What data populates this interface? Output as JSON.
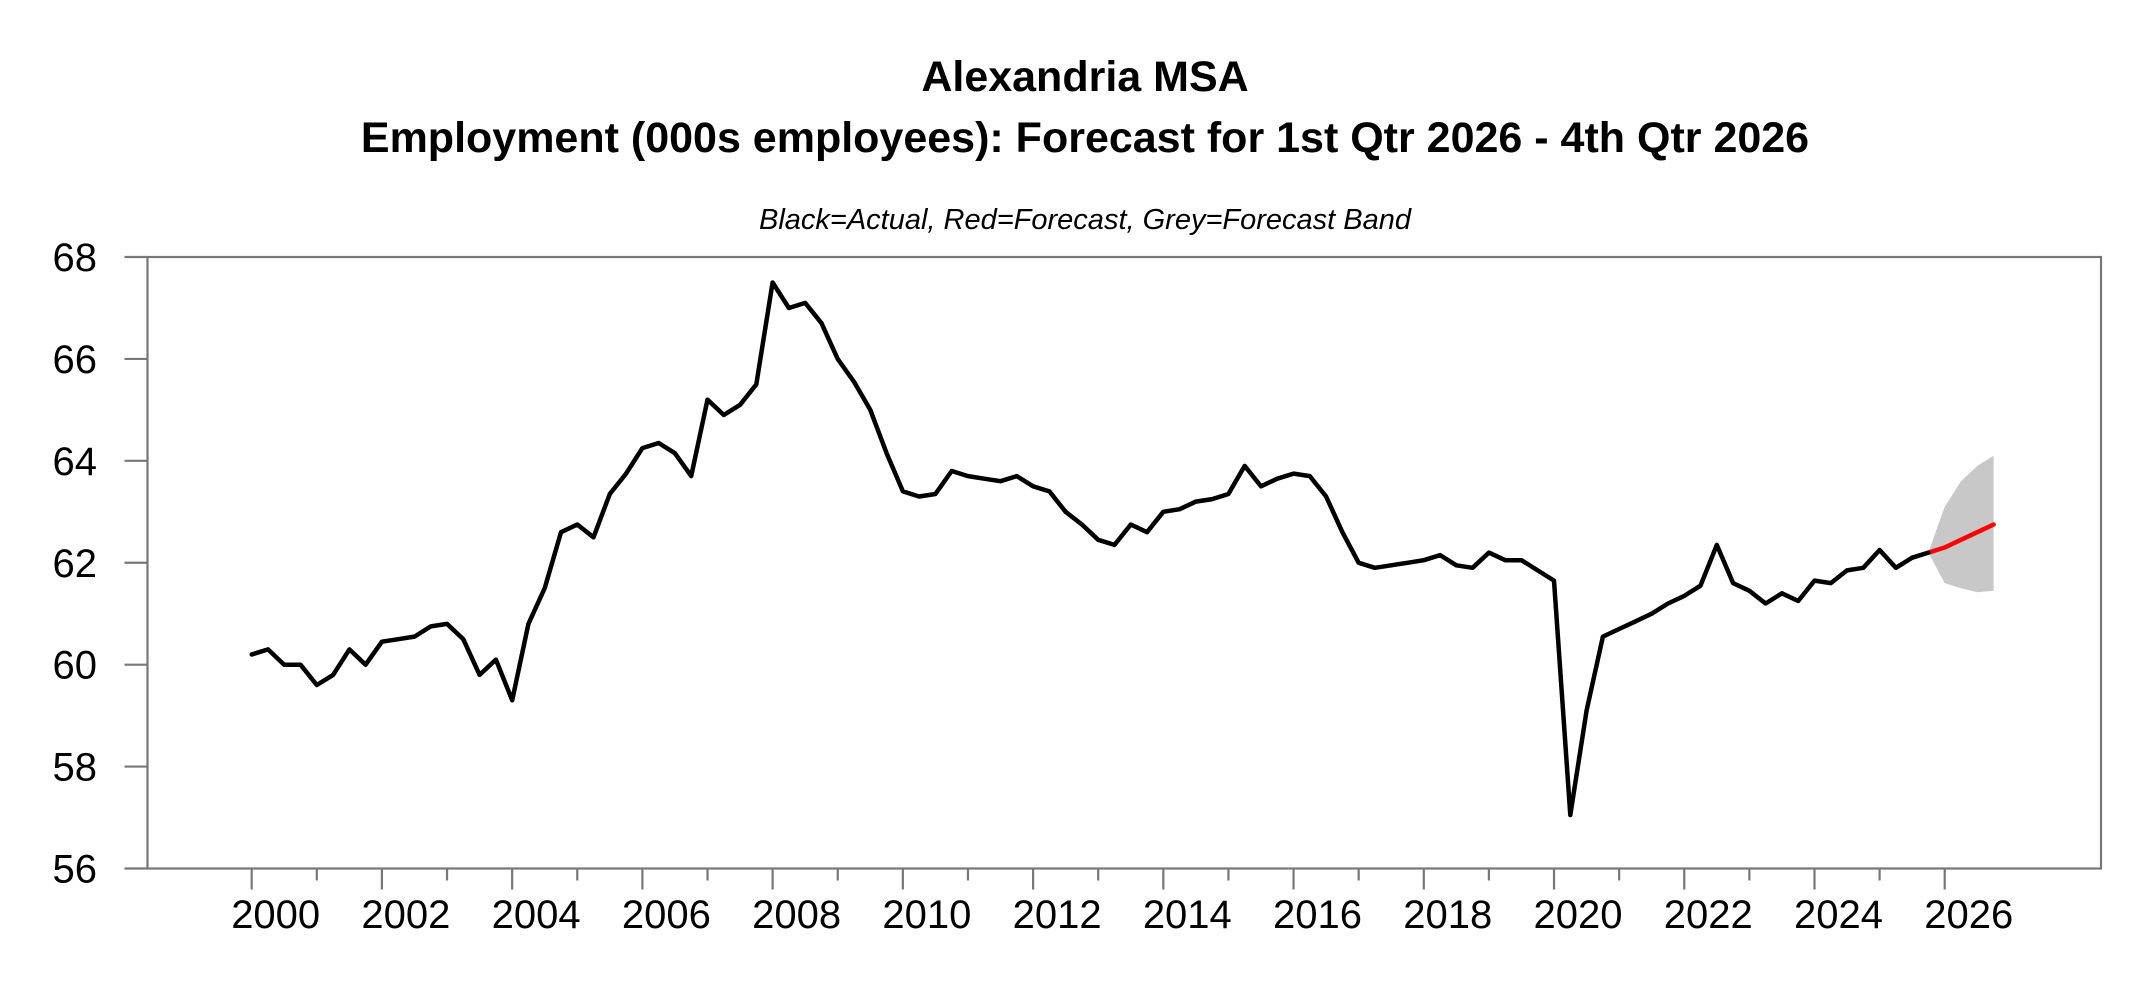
{
  "header": {
    "title_line1": "Alexandria MSA",
    "title_line2": "Employment (000s employees): Forecast for 1st Qtr 2026 - 4th Qtr 2026",
    "subtitle": "Black=Actual, Red=Forecast, Grey=Forecast Band"
  },
  "colors": {
    "actual_line": "#000000",
    "forecast_line": "#ff0000",
    "forecast_band": "#c8c8c8",
    "axis": "#777777",
    "tick_label": "#000000",
    "background": "#ffffff"
  },
  "chart_data": {
    "type": "line",
    "title": "Alexandria MSA",
    "subtitle": "Employment (000s employees): Forecast for 1st Qtr 2026 - 4th Qtr 2026",
    "legend_note": "Black=Actual, Red=Forecast, Grey=Forecast Band",
    "xlabel": "",
    "ylabel": "",
    "grid": false,
    "x_axis": {
      "range": [
        1998.4,
        2028.4
      ],
      "labeled_ticks": [
        2000,
        2002,
        2004,
        2006,
        2008,
        2010,
        2012,
        2014,
        2016,
        2018,
        2020,
        2022,
        2024,
        2026
      ],
      "minor_ticks": [
        2001,
        2003,
        2005,
        2007,
        2009,
        2011,
        2013,
        2015,
        2017,
        2019,
        2021,
        2023,
        2025
      ]
    },
    "y_axis": {
      "range": [
        56,
        68
      ],
      "ticks": [
        56,
        58,
        60,
        62,
        64,
        66,
        68
      ]
    },
    "series": [
      {
        "name": "Actual",
        "color": "#000000",
        "frequency": "quarterly",
        "start": 2000.0,
        "step": 0.25,
        "values": [
          60.2,
          60.3,
          60.0,
          60.0,
          59.6,
          59.8,
          60.3,
          60.0,
          60.45,
          60.5,
          60.55,
          60.75,
          60.8,
          60.5,
          59.8,
          60.1,
          59.3,
          60.8,
          61.5,
          62.6,
          62.75,
          62.5,
          63.35,
          63.75,
          64.25,
          64.35,
          64.15,
          63.7,
          65.2,
          64.9,
          65.1,
          65.5,
          67.5,
          67.0,
          67.1,
          66.7,
          66.0,
          65.55,
          65.0,
          64.15,
          63.4,
          63.3,
          63.35,
          63.8,
          63.7,
          63.65,
          63.6,
          63.7,
          63.5,
          63.4,
          63.0,
          62.75,
          62.45,
          62.35,
          62.75,
          62.6,
          63.0,
          63.05,
          63.2,
          63.25,
          63.35,
          63.9,
          63.5,
          63.65,
          63.75,
          63.7,
          63.3,
          62.6,
          62.0,
          61.9,
          61.95,
          62.0,
          62.05,
          62.15,
          61.95,
          61.9,
          62.2,
          62.05,
          62.05,
          61.85,
          61.65,
          57.05,
          59.1,
          60.55,
          60.7,
          60.85,
          61.0,
          61.2,
          61.35,
          61.55,
          62.35,
          61.6,
          61.45,
          61.2,
          61.4,
          61.25,
          61.65,
          61.6,
          61.85,
          61.9,
          62.25,
          61.9,
          62.1,
          62.2
        ]
      },
      {
        "name": "Forecast",
        "color": "#ff0000",
        "frequency": "quarterly",
        "start": 2025.75,
        "step": 0.25,
        "values": [
          62.2,
          62.3,
          62.45,
          62.6,
          62.75
        ]
      }
    ],
    "band": {
      "name": "Forecast Band",
      "color": "#c8c8c8",
      "start": 2025.75,
      "step": 0.25,
      "upper": [
        62.2,
        63.1,
        63.6,
        63.9,
        64.1
      ],
      "lower": [
        62.2,
        61.6,
        61.5,
        61.42,
        61.45
      ]
    }
  }
}
